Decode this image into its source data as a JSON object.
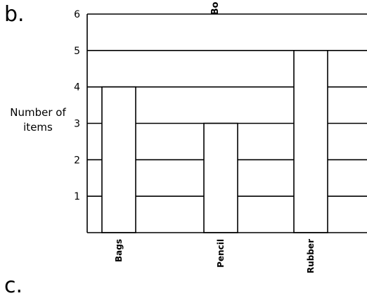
{
  "labels": {
    "question": "b.",
    "next_question": "c."
  },
  "chart_data": {
    "type": "bar",
    "title": "Bo",
    "xlabel": "",
    "ylabel": "Number of items",
    "categories": [
      "Bags",
      "Pencil",
      "Rubber"
    ],
    "values": [
      4,
      3,
      5
    ],
    "ylim": [
      0,
      6
    ],
    "yticks": [
      1,
      2,
      3,
      4,
      5,
      6
    ],
    "grid": true,
    "legend": "none",
    "colors": {
      "bar_fill": "#ffffff",
      "bar_stroke": "#000000",
      "grid": "#000000",
      "axis": "#000000",
      "text": "#000000"
    }
  }
}
